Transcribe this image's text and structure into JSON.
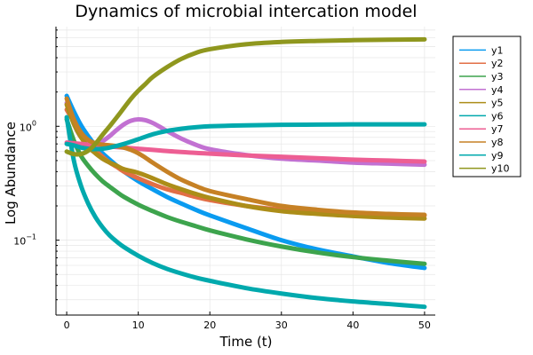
{
  "chart_data": {
    "type": "line",
    "title": "Dynamics of microbial intercation model",
    "xlabel": "Time (t)",
    "ylabel": "Log Abundance",
    "xlim": [
      -1.5,
      51.5
    ],
    "ylim": [
      0.022,
      7.5
    ],
    "yscale": "log",
    "grid": true,
    "legend_position": "top-right",
    "xticks": [
      0,
      10,
      20,
      30,
      40,
      50
    ],
    "yticks": [
      {
        "value": 1,
        "base": "10",
        "exp": "0"
      },
      {
        "value": 0.1,
        "base": "10",
        "exp": "−1"
      }
    ],
    "series": [
      {
        "name": "y1",
        "color": "#0a9bf0",
        "x": [
          0,
          1,
          2,
          3,
          4,
          5,
          6,
          7,
          8,
          10,
          12,
          14,
          16,
          18,
          20,
          25,
          30,
          35,
          40,
          45,
          50
        ],
        "y": [
          1.85,
          1.35,
          1.02,
          0.82,
          0.68,
          0.58,
          0.51,
          0.45,
          0.4,
          0.33,
          0.28,
          0.24,
          0.21,
          0.185,
          0.165,
          0.128,
          0.1,
          0.083,
          0.072,
          0.063,
          0.057
        ]
      },
      {
        "name": "y2",
        "color": "#e26f46",
        "x": [
          0,
          1,
          2,
          3,
          4,
          5,
          6,
          7,
          8,
          10,
          12,
          14,
          16,
          18,
          20,
          25,
          30,
          35,
          40,
          45,
          50
        ],
        "y": [
          1.4,
          1.1,
          0.88,
          0.73,
          0.62,
          0.54,
          0.48,
          0.44,
          0.4,
          0.35,
          0.31,
          0.28,
          0.26,
          0.24,
          0.225,
          0.2,
          0.185,
          0.177,
          0.172,
          0.168,
          0.165
        ]
      },
      {
        "name": "y3",
        "color": "#3da44d",
        "x": [
          0,
          1,
          2,
          3,
          4,
          5,
          6,
          7,
          8,
          10,
          12,
          14,
          16,
          18,
          20,
          25,
          30,
          35,
          40,
          45,
          50
        ],
        "y": [
          1.15,
          0.75,
          0.55,
          0.45,
          0.38,
          0.33,
          0.295,
          0.265,
          0.24,
          0.205,
          0.18,
          0.16,
          0.145,
          0.133,
          0.122,
          0.102,
          0.088,
          0.078,
          0.071,
          0.066,
          0.062
        ]
      },
      {
        "name": "y4",
        "color": "#c271d2",
        "x": [
          0,
          1,
          2,
          3,
          4,
          5,
          6,
          7,
          8,
          9,
          10,
          11,
          12,
          13,
          14,
          16,
          18,
          20,
          25,
          30,
          35,
          40,
          45,
          50
        ],
        "y": [
          1.6,
          1.05,
          0.8,
          0.72,
          0.7,
          0.74,
          0.82,
          0.93,
          1.04,
          1.12,
          1.15,
          1.13,
          1.07,
          0.99,
          0.91,
          0.78,
          0.69,
          0.63,
          0.56,
          0.52,
          0.5,
          0.48,
          0.47,
          0.46
        ]
      },
      {
        "name": "y5",
        "color": "#ac8d18",
        "x": [
          0,
          1,
          2,
          3,
          4,
          5,
          6,
          7,
          8,
          10,
          12,
          14,
          16,
          18,
          20,
          25,
          30,
          35,
          40,
          45,
          50
        ],
        "y": [
          1.55,
          1.05,
          0.8,
          0.66,
          0.58,
          0.52,
          0.48,
          0.45,
          0.42,
          0.39,
          0.35,
          0.31,
          0.28,
          0.255,
          0.235,
          0.2,
          0.18,
          0.17,
          0.163,
          0.158,
          0.155
        ]
      },
      {
        "name": "y6",
        "color": "#00a9ad",
        "x": [
          0,
          1,
          2,
          3,
          4,
          5,
          6,
          7,
          8,
          10,
          12,
          14,
          16,
          18,
          20,
          25,
          30,
          35,
          40,
          45,
          50
        ],
        "y": [
          1.2,
          0.5,
          0.3,
          0.21,
          0.16,
          0.13,
          0.11,
          0.097,
          0.087,
          0.073,
          0.063,
          0.056,
          0.051,
          0.047,
          0.044,
          0.038,
          0.034,
          0.031,
          0.029,
          0.0275,
          0.026
        ]
      },
      {
        "name": "y7",
        "color": "#ed5e93",
        "x": [
          0,
          2,
          4,
          6,
          8,
          10,
          15,
          20,
          25,
          30,
          35,
          40,
          45,
          50
        ],
        "y": [
          0.72,
          0.7,
          0.68,
          0.665,
          0.65,
          0.635,
          0.6,
          0.575,
          0.555,
          0.54,
          0.525,
          0.51,
          0.5,
          0.49
        ]
      },
      {
        "name": "y8",
        "color": "#c68125",
        "x": [
          0,
          1,
          2,
          3,
          4,
          5,
          6,
          7,
          8,
          9,
          10,
          11,
          12,
          14,
          16,
          18,
          20,
          25,
          30,
          35,
          40,
          45,
          50
        ],
        "y": [
          1.75,
          1.15,
          0.88,
          0.76,
          0.71,
          0.69,
          0.68,
          0.67,
          0.65,
          0.62,
          0.58,
          0.53,
          0.48,
          0.4,
          0.34,
          0.3,
          0.27,
          0.23,
          0.2,
          0.185,
          0.175,
          0.17,
          0.167
        ]
      },
      {
        "name": "y9",
        "color": "#00a9ad",
        "x": [
          0,
          1,
          2,
          3,
          4,
          5,
          6,
          8,
          10,
          12,
          14,
          16,
          18,
          20,
          25,
          30,
          35,
          40,
          45,
          50
        ],
        "y": [
          0.7,
          0.68,
          0.65,
          0.635,
          0.63,
          0.635,
          0.65,
          0.7,
          0.77,
          0.85,
          0.91,
          0.95,
          0.98,
          1.0,
          1.02,
          1.03,
          1.035,
          1.04,
          1.04,
          1.04
        ]
      },
      {
        "name": "y10",
        "color": "#8f971e",
        "x": [
          0,
          1,
          2,
          3,
          4,
          5,
          6,
          7,
          8,
          9,
          10,
          11,
          12,
          14,
          16,
          18,
          20,
          25,
          30,
          35,
          40,
          45,
          50
        ],
        "y": [
          0.6,
          0.57,
          0.57,
          0.61,
          0.7,
          0.84,
          1.0,
          1.2,
          1.45,
          1.75,
          2.05,
          2.35,
          2.7,
          3.3,
          3.9,
          4.4,
          4.75,
          5.25,
          5.5,
          5.62,
          5.7,
          5.75,
          5.8
        ]
      }
    ]
  }
}
